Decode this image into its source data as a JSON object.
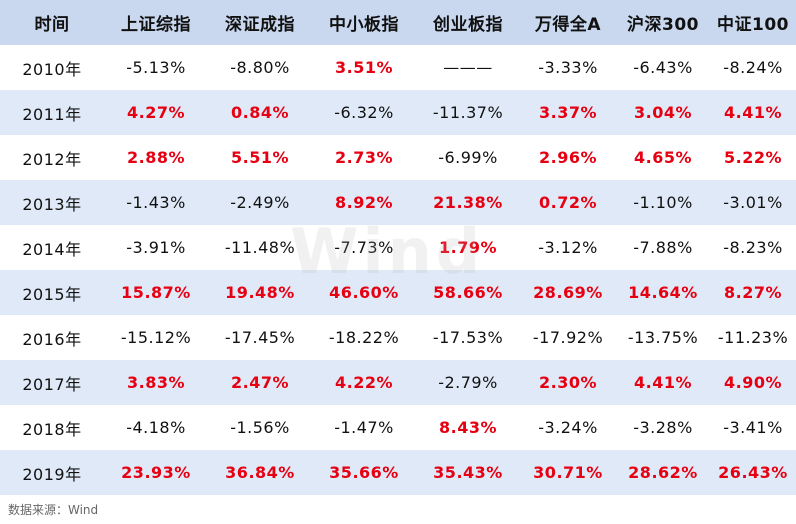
{
  "table": {
    "headers": [
      "时间",
      "上证综指",
      "深证成指",
      "中小板指",
      "创业板指",
      "万得全A",
      "沪深300",
      "中证100"
    ],
    "rows": [
      [
        "2010年",
        "-5.13%",
        "-8.80%",
        "3.51%",
        "———",
        "-3.33%",
        "-6.43%",
        "-8.24%"
      ],
      [
        "2011年",
        "4.27%",
        "0.84%",
        "-6.32%",
        "-11.37%",
        "3.37%",
        "3.04%",
        "4.41%"
      ],
      [
        "2012年",
        "2.88%",
        "5.51%",
        "2.73%",
        "-6.99%",
        "2.96%",
        "4.65%",
        "5.22%"
      ],
      [
        "2013年",
        "-1.43%",
        "-2.49%",
        "8.92%",
        "21.38%",
        "0.72%",
        "-1.10%",
        "-3.01%"
      ],
      [
        "2014年",
        "-3.91%",
        "-11.48%",
        "-7.73%",
        "1.79%",
        "-3.12%",
        "-7.88%",
        "-8.23%"
      ],
      [
        "2015年",
        "15.87%",
        "19.48%",
        "46.60%",
        "58.66%",
        "28.69%",
        "14.64%",
        "8.27%"
      ],
      [
        "2016年",
        "-15.12%",
        "-17.45%",
        "-18.22%",
        "-17.53%",
        "-17.92%",
        "-13.75%",
        "-11.23%"
      ],
      [
        "2017年",
        "3.83%",
        "2.47%",
        "4.22%",
        "-2.79%",
        "2.30%",
        "4.41%",
        "4.90%"
      ],
      [
        "2018年",
        "-4.18%",
        "-1.56%",
        "-1.47%",
        "8.43%",
        "-3.24%",
        "-3.28%",
        "-3.41%"
      ],
      [
        "2019年",
        "23.93%",
        "36.84%",
        "35.66%",
        "35.43%",
        "30.71%",
        "28.62%",
        "26.43%"
      ]
    ]
  },
  "colors": {
    "positive": "#e60012",
    "header_bg": "#c9d8ef",
    "stripe_bg": "#dfe9f7"
  },
  "source": "数据来源：Wind",
  "watermark": "Wind"
}
